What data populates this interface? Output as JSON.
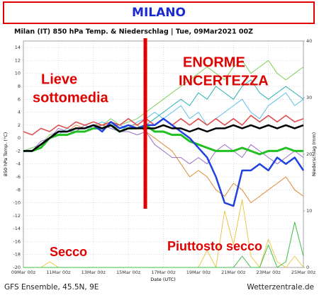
{
  "header": {
    "title": "MILANO"
  },
  "chart_data": {
    "type": "line",
    "title": "Milan  (IT)  850 hPa Temp. & Niederschlag | Tue, 09Mar2021 00Z",
    "y_label": "850 hPa Temp. (°C)",
    "y2_label": "Niederschlag (mm)",
    "x_label": "Date (UTC)",
    "categories": [
      "09Mar 00z",
      null,
      null,
      null,
      "11Mar 00z",
      null,
      null,
      null,
      "13Mar 00z",
      null,
      null,
      null,
      "15Mar 00z",
      null,
      null,
      null,
      "17Mar 00z",
      null,
      null,
      null,
      "19Mar 00z",
      null,
      null,
      null,
      "21Mar 00z",
      null,
      null,
      null,
      "23Mar 00z",
      null,
      null,
      null,
      "25Mar 00z"
    ],
    "ylim": [
      -20,
      15
    ],
    "yticks": [
      -20,
      -18,
      -16,
      -14,
      -12,
      -10,
      -8,
      -6,
      -4,
      -2,
      0,
      2,
      4,
      6,
      8,
      10,
      12,
      14
    ],
    "y2lim": [
      0,
      40
    ],
    "y2ticks": [
      0,
      10,
      20,
      30,
      40
    ],
    "grid": true,
    "series": [
      {
        "color": "#2ab0b0",
        "width": 1,
        "values": [
          -2,
          -2,
          -1,
          0,
          1,
          1,
          1.5,
          1.5,
          2,
          2,
          2.5,
          1,
          2,
          1.5,
          2,
          3,
          4,
          5,
          6,
          5,
          7,
          6,
          8,
          7,
          6,
          8,
          9,
          7,
          6,
          7,
          8,
          7,
          6
        ]
      },
      {
        "color": "#e08a30",
        "width": 1,
        "values": [
          -2,
          -2,
          -1,
          0,
          1,
          1,
          2,
          1.5,
          2,
          2,
          2,
          1.5,
          2,
          2,
          1,
          0,
          -1,
          -2,
          -4,
          -6,
          -5,
          -6,
          -8,
          -9,
          -7,
          -8,
          -10,
          -9,
          -8,
          -7,
          -6,
          -8,
          -9
        ]
      },
      {
        "color": "#7ccf5a",
        "width": 1,
        "values": [
          -2,
          -1.5,
          -1,
          0.5,
          1,
          1,
          1,
          2,
          2.5,
          2,
          3,
          2,
          2.5,
          3,
          4,
          5,
          6,
          7,
          8,
          9,
          10,
          11,
          10,
          9,
          11,
          12,
          10,
          11,
          12,
          10,
          9,
          10,
          11
        ]
      },
      {
        "color": "#9a6fc8",
        "width": 1,
        "values": [
          -2,
          -2,
          -0.5,
          0,
          1.5,
          1,
          1,
          2,
          1.5,
          2,
          1.5,
          1,
          1,
          0.5,
          1,
          -1,
          -2,
          -3,
          -3,
          -4,
          -3,
          -4,
          -2,
          -1,
          -2,
          -3,
          -1,
          -2,
          -3,
          -4,
          -3,
          -2,
          -3
        ]
      },
      {
        "color": "#5bc0e8",
        "width": 1,
        "values": [
          -2,
          -2,
          -1,
          0,
          0.5,
          1.5,
          1,
          1,
          2,
          2.5,
          2,
          2,
          1.5,
          2.5,
          3,
          4,
          3,
          4,
          5,
          3,
          4,
          2,
          3,
          4,
          5,
          6,
          4,
          3,
          5,
          6,
          7,
          5,
          6
        ]
      },
      {
        "color": "#e8c84a",
        "width": 1,
        "axis": "y2",
        "values": [
          0,
          0,
          0,
          1,
          0,
          0,
          0,
          0,
          0,
          0,
          0,
          0,
          0,
          0,
          0,
          0,
          0,
          0,
          0,
          0,
          0,
          3,
          0,
          10,
          4,
          12,
          2,
          0,
          5,
          1,
          0,
          2,
          0
        ]
      },
      {
        "color": "#3cc040",
        "width": 1,
        "axis": "y2",
        "values": [
          0,
          0,
          0,
          0,
          0,
          0,
          0,
          0,
          0,
          0,
          0,
          0,
          0,
          0,
          0,
          0,
          0,
          0,
          0,
          0,
          0,
          0,
          0,
          0,
          0,
          2,
          0,
          0,
          4,
          0,
          1,
          8,
          2
        ]
      },
      {
        "color": "#e05050",
        "width": 1.6,
        "values": [
          1,
          0.5,
          1.5,
          1,
          2,
          1.5,
          2.5,
          2,
          2.5,
          2,
          2.5,
          2,
          3,
          2,
          3,
          2,
          3,
          2,
          3,
          2,
          3,
          2,
          3,
          2,
          3,
          2,
          3.5,
          2.5,
          3.5,
          2.5,
          3.5,
          2.5,
          3
        ]
      },
      {
        "color": "#20c020",
        "width": 3,
        "values": [
          -2,
          -2,
          -1.5,
          0,
          0.5,
          0.5,
          1,
          1,
          1.5,
          1.5,
          2,
          1,
          1.5,
          1.5,
          2,
          1,
          1,
          0.5,
          0.5,
          -0.5,
          -1,
          -1.5,
          -2,
          -2,
          -2,
          -1.5,
          -2,
          -2.5,
          -2,
          -2,
          -1.5,
          -2,
          -2
        ]
      },
      {
        "color": "#2040e0",
        "width": 2.5,
        "values": [
          -2,
          -2,
          -1,
          0,
          1,
          1,
          1.5,
          1.5,
          2,
          1,
          2.5,
          1.5,
          2,
          1.5,
          2,
          2,
          3,
          2,
          1,
          0,
          -1.5,
          -3,
          -6,
          -10,
          -10.5,
          -5,
          -5,
          -4,
          -5,
          -3,
          -4,
          -3,
          -5
        ]
      },
      {
        "color": "#000000",
        "width": 2.5,
        "values": [
          -2,
          -2,
          -1,
          0,
          1,
          1,
          1.5,
          1.5,
          2,
          1.5,
          2,
          1,
          1.5,
          1.5,
          1.5,
          1.5,
          2,
          1.5,
          1.5,
          1,
          1.5,
          1,
          1.5,
          1.5,
          2,
          1.5,
          2,
          1.5,
          2,
          1.5,
          2,
          1.5,
          2
        ]
      }
    ],
    "annotations": [
      "Lieve",
      "sottomedia",
      "ENORME",
      "INCERTEZZA",
      "Secco",
      "Piuttosto secco"
    ]
  },
  "footer": {
    "left": "GFS Ensemble, 45.5N, 9E",
    "right": "Wetterzentrale.de"
  }
}
